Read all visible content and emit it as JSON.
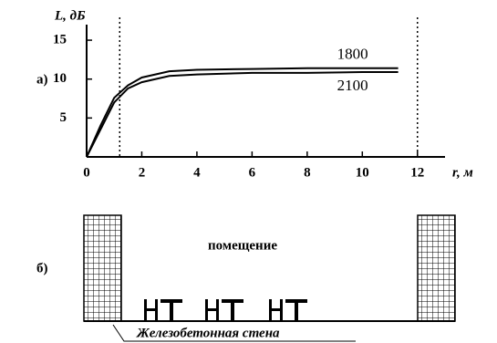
{
  "chart_data": {
    "type": "line",
    "panel_label": "а)",
    "y_label": "L, дБ",
    "x_label": "r, м",
    "x": [
      0,
      0.5,
      1,
      1.5,
      2,
      3,
      4,
      6,
      8,
      10,
      11.3
    ],
    "series": [
      {
        "name": "1800",
        "color": "#000000",
        "values": [
          0,
          4,
          7.6,
          9.2,
          10.2,
          11,
          11.2,
          11.3,
          11.4,
          11.4,
          11.4
        ]
      },
      {
        "name": "2100",
        "color": "#000000",
        "values": [
          0,
          3.5,
          7,
          8.8,
          9.6,
          10.4,
          10.6,
          10.8,
          10.8,
          10.9,
          10.9
        ]
      }
    ],
    "xlim": [
      0,
      13
    ],
    "ylim": [
      0,
      17
    ],
    "xticks": [
      0,
      2,
      4,
      6,
      8,
      10,
      12
    ],
    "yticks": [
      5,
      10,
      15
    ],
    "vlines": [
      1.2,
      12
    ]
  },
  "diagram": {
    "label": "б)",
    "room": "помещение",
    "wall": "Железобетонная стена"
  }
}
